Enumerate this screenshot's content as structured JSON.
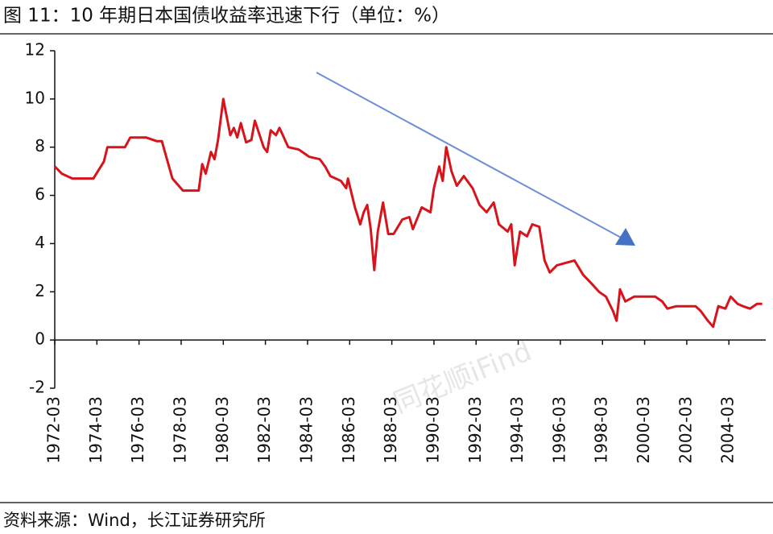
{
  "chart_data": {
    "type": "line",
    "title": "图 11：10 年期日本国债收益率迅速下行（单位：%）",
    "source": "资料来源：Wind，长江证券研究所",
    "watermark": "同花顺iFind",
    "x": [
      "1972-03",
      "1972-07",
      "1973-01",
      "1974-01",
      "1974-07",
      "1974-09",
      "1975-07",
      "1975-10",
      "1976-07",
      "1977-01",
      "1977-04",
      "1977-10",
      "1978-04",
      "1979-01",
      "1979-03",
      "1979-05",
      "1979-08",
      "1979-10",
      "1979-12",
      "1980-03",
      "1980-07",
      "1980-09",
      "1980-11",
      "1981-01",
      "1981-04",
      "1981-07",
      "1981-09",
      "1982-02",
      "1982-04",
      "1982-06",
      "1982-09",
      "1982-11",
      "1983-04",
      "1983-10",
      "1984-04",
      "1984-10",
      "1985-01",
      "1985-04",
      "1985-10",
      "1986-01",
      "1986-02",
      "1986-06",
      "1986-09",
      "1986-11",
      "1987-01",
      "1987-03",
      "1987-05",
      "1987-07",
      "1987-10",
      "1988-01",
      "1988-04",
      "1988-09",
      "1989-01",
      "1989-03",
      "1989-08",
      "1990-01",
      "1990-03",
      "1990-06",
      "1990-08",
      "1990-10",
      "1991-01",
      "1991-04",
      "1991-08",
      "1992-01",
      "1992-05",
      "1992-09",
      "1993-01",
      "1993-04",
      "1993-09",
      "1993-11",
      "1994-01",
      "1994-04",
      "1994-08",
      "1994-11",
      "1995-03",
      "1995-06",
      "1995-09",
      "1996-01",
      "1996-06",
      "1996-11",
      "1997-04",
      "1997-08",
      "1998-01",
      "1998-05",
      "1998-09",
      "1998-11",
      "1999-01",
      "1999-04",
      "1999-09",
      "2000-04",
      "2000-09",
      "2001-01",
      "2001-04",
      "2001-09",
      "2002-03",
      "2002-08",
      "2002-11",
      "2003-03",
      "2003-06",
      "2003-09",
      "2004-01",
      "2004-04",
      "2004-08",
      "2004-11",
      "2005-03",
      "2005-07",
      "2005-10"
    ],
    "series": [
      {
        "name": "10年期日本国债收益率",
        "color": "#d7141c",
        "values": [
          7.2,
          6.9,
          6.7,
          6.7,
          7.4,
          8.0,
          8.0,
          8.4,
          8.4,
          8.25,
          8.25,
          6.7,
          6.2,
          6.2,
          7.3,
          6.9,
          7.8,
          7.5,
          8.3,
          10.0,
          8.5,
          8.8,
          8.4,
          9.0,
          8.2,
          8.3,
          9.1,
          8.0,
          7.8,
          8.7,
          8.5,
          8.8,
          8.0,
          7.9,
          7.6,
          7.5,
          7.2,
          6.8,
          6.6,
          6.3,
          6.7,
          5.5,
          4.8,
          5.3,
          5.6,
          4.6,
          2.9,
          4.5,
          5.7,
          4.4,
          4.4,
          5.0,
          5.1,
          4.6,
          5.5,
          5.3,
          6.3,
          7.2,
          6.6,
          8.0,
          7.0,
          6.4,
          6.8,
          6.3,
          5.6,
          5.3,
          5.7,
          4.8,
          4.5,
          4.8,
          3.1,
          4.5,
          4.3,
          4.8,
          4.7,
          3.3,
          2.8,
          3.1,
          3.2,
          3.3,
          2.7,
          2.4,
          2.0,
          1.8,
          1.2,
          0.8,
          2.1,
          1.6,
          1.8,
          1.8,
          1.8,
          1.6,
          1.3,
          1.4,
          1.4,
          1.4,
          1.2,
          0.8,
          0.55,
          1.4,
          1.3,
          1.8,
          1.5,
          1.4,
          1.3,
          1.5,
          1.5
        ]
      }
    ],
    "xlim": [
      "1972-03",
      "2005-12"
    ],
    "xticks": [
      "1972-03",
      "1974-03",
      "1976-03",
      "1978-03",
      "1980-03",
      "1982-03",
      "1984-03",
      "1986-03",
      "1988-03",
      "1990-03",
      "1992-03",
      "1994-03",
      "1996-03",
      "1998-03",
      "2000-03",
      "2002-03",
      "2004-03"
    ],
    "ylim": [
      -2,
      12
    ],
    "yticks": [
      -2,
      0,
      2,
      4,
      6,
      8,
      10,
      12
    ]
  }
}
